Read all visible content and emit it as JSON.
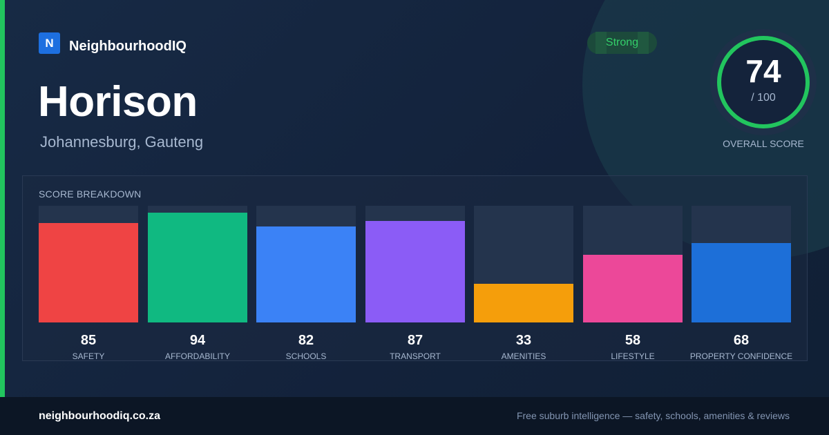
{
  "brand": {
    "mark": "N",
    "name": "NeighbourhoodIQ"
  },
  "suburb": "Horison",
  "location": "Johannesburg, Gauteng",
  "rating_badge": "Strong",
  "overall": {
    "score": "74",
    "max": "/ 100",
    "caption": "OVERALL SCORE",
    "fraction": 0.74,
    "ring_color": "#22c55e"
  },
  "breakdown": {
    "title": "SCORE BREAKDOWN",
    "metrics": [
      {
        "label": "SAFETY",
        "value": "85",
        "color": "#ef4444"
      },
      {
        "label": "AFFORDABILITY",
        "value": "94",
        "color": "#10b981"
      },
      {
        "label": "SCHOOLS",
        "value": "82",
        "color": "#3b82f6"
      },
      {
        "label": "TRANSPORT",
        "value": "87",
        "color": "#8b5cf6"
      },
      {
        "label": "AMENITIES",
        "value": "33",
        "color": "#f59e0b"
      },
      {
        "label": "LIFESTYLE",
        "value": "58",
        "color": "#ec4899"
      },
      {
        "label": "PROPERTY CONFIDENCE",
        "value": "68",
        "color": "#1d6fd8"
      }
    ]
  },
  "footer": {
    "url": "neighbourhoodiq.co.za",
    "tagline": "Free suburb intelligence — safety, schools, amenities & reviews"
  },
  "accent_color": "#22c55e"
}
